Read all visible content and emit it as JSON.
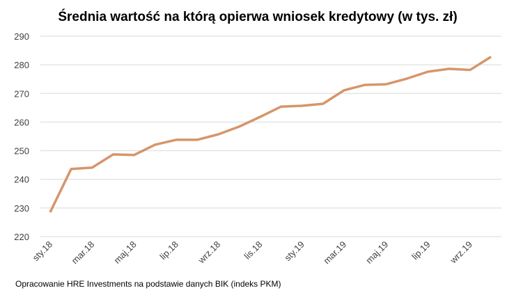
{
  "chart_data": {
    "type": "line",
    "title": "Średnia wartość na którą opierwa wniosek kredytowy (w tys. zł)",
    "source": "Opracowanie HRE Investments na podstawie danych BIK (indeks PKM)",
    "categories": [
      "sty.18",
      null,
      "mar.18",
      null,
      "maj.18",
      null,
      "lip.18",
      null,
      "wrz.18",
      null,
      "lis.18",
      null,
      "sty.19",
      null,
      "mar.19",
      null,
      "maj.19",
      null,
      "lip.19",
      null,
      "wrz.19",
      null
    ],
    "values": [
      228.5,
      243.6,
      244.1,
      248.7,
      248.5,
      252.1,
      253.8,
      253.8,
      255.7,
      258.4,
      261.8,
      265.4,
      265.7,
      266.4,
      271.1,
      273.0,
      273.2,
      275.2,
      277.6,
      278.6,
      278.2,
      282.8
    ],
    "color": "#d6956a",
    "ylim": [
      220,
      290
    ],
    "yticks": [
      220,
      230,
      240,
      250,
      260,
      270,
      280,
      290
    ],
    "grid": true
  }
}
